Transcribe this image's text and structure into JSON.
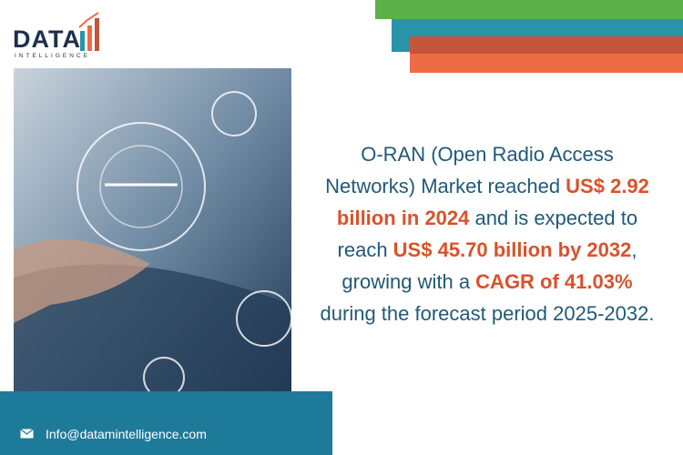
{
  "logo": {
    "name": "DATA",
    "tagline": "INTELLIGENCE"
  },
  "headline": [
    {
      "text": "O-RAN (Open Radio Access Networks) Market reached ",
      "highlight": false
    },
    {
      "text": "US$ 2.92 billion in 2024",
      "highlight": true
    },
    {
      "text": " and is expected to reach ",
      "highlight": false
    },
    {
      "text": "US$ 45.70 billion by 2032",
      "highlight": true
    },
    {
      "text": ", growing with a ",
      "highlight": false
    },
    {
      "text": "CAGR of 41.03%",
      "highlight": true
    },
    {
      "text": " during the forecast period 2025-2032.",
      "highlight": false
    }
  ],
  "footer": {
    "email": "Info@datamintelligence.com"
  }
}
